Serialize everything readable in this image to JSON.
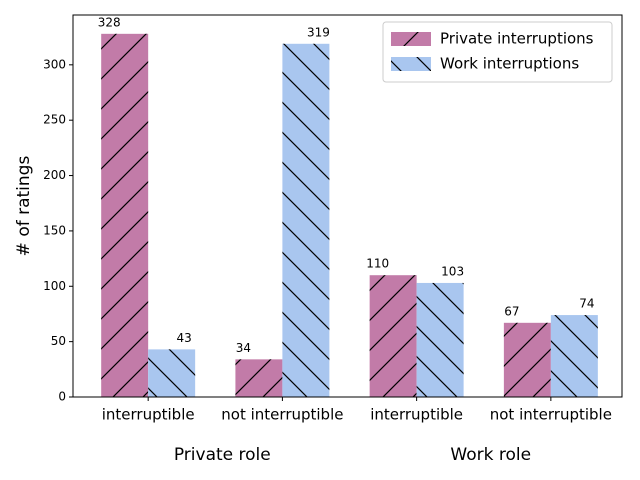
{
  "chart_data": {
    "type": "bar",
    "categories": [
      "interruptible",
      "not interruptible",
      "interruptible",
      "not interruptible"
    ],
    "group_labels": [
      "Private role",
      "Work role"
    ],
    "y_label": "# of ratings",
    "series": [
      {
        "name": "Private interruptions",
        "color": "#c27ba8",
        "hatch": "/",
        "values": [
          328,
          34,
          110,
          67
        ]
      },
      {
        "name": "Work interruptions",
        "color": "#a9c6ef",
        "hatch": "\\",
        "values": [
          43,
          319,
          103,
          74
        ]
      }
    ],
    "ylim": [
      0,
      345
    ],
    "yticks": [
      0,
      50,
      100,
      150,
      200,
      250,
      300
    ],
    "legend": "upper right"
  }
}
